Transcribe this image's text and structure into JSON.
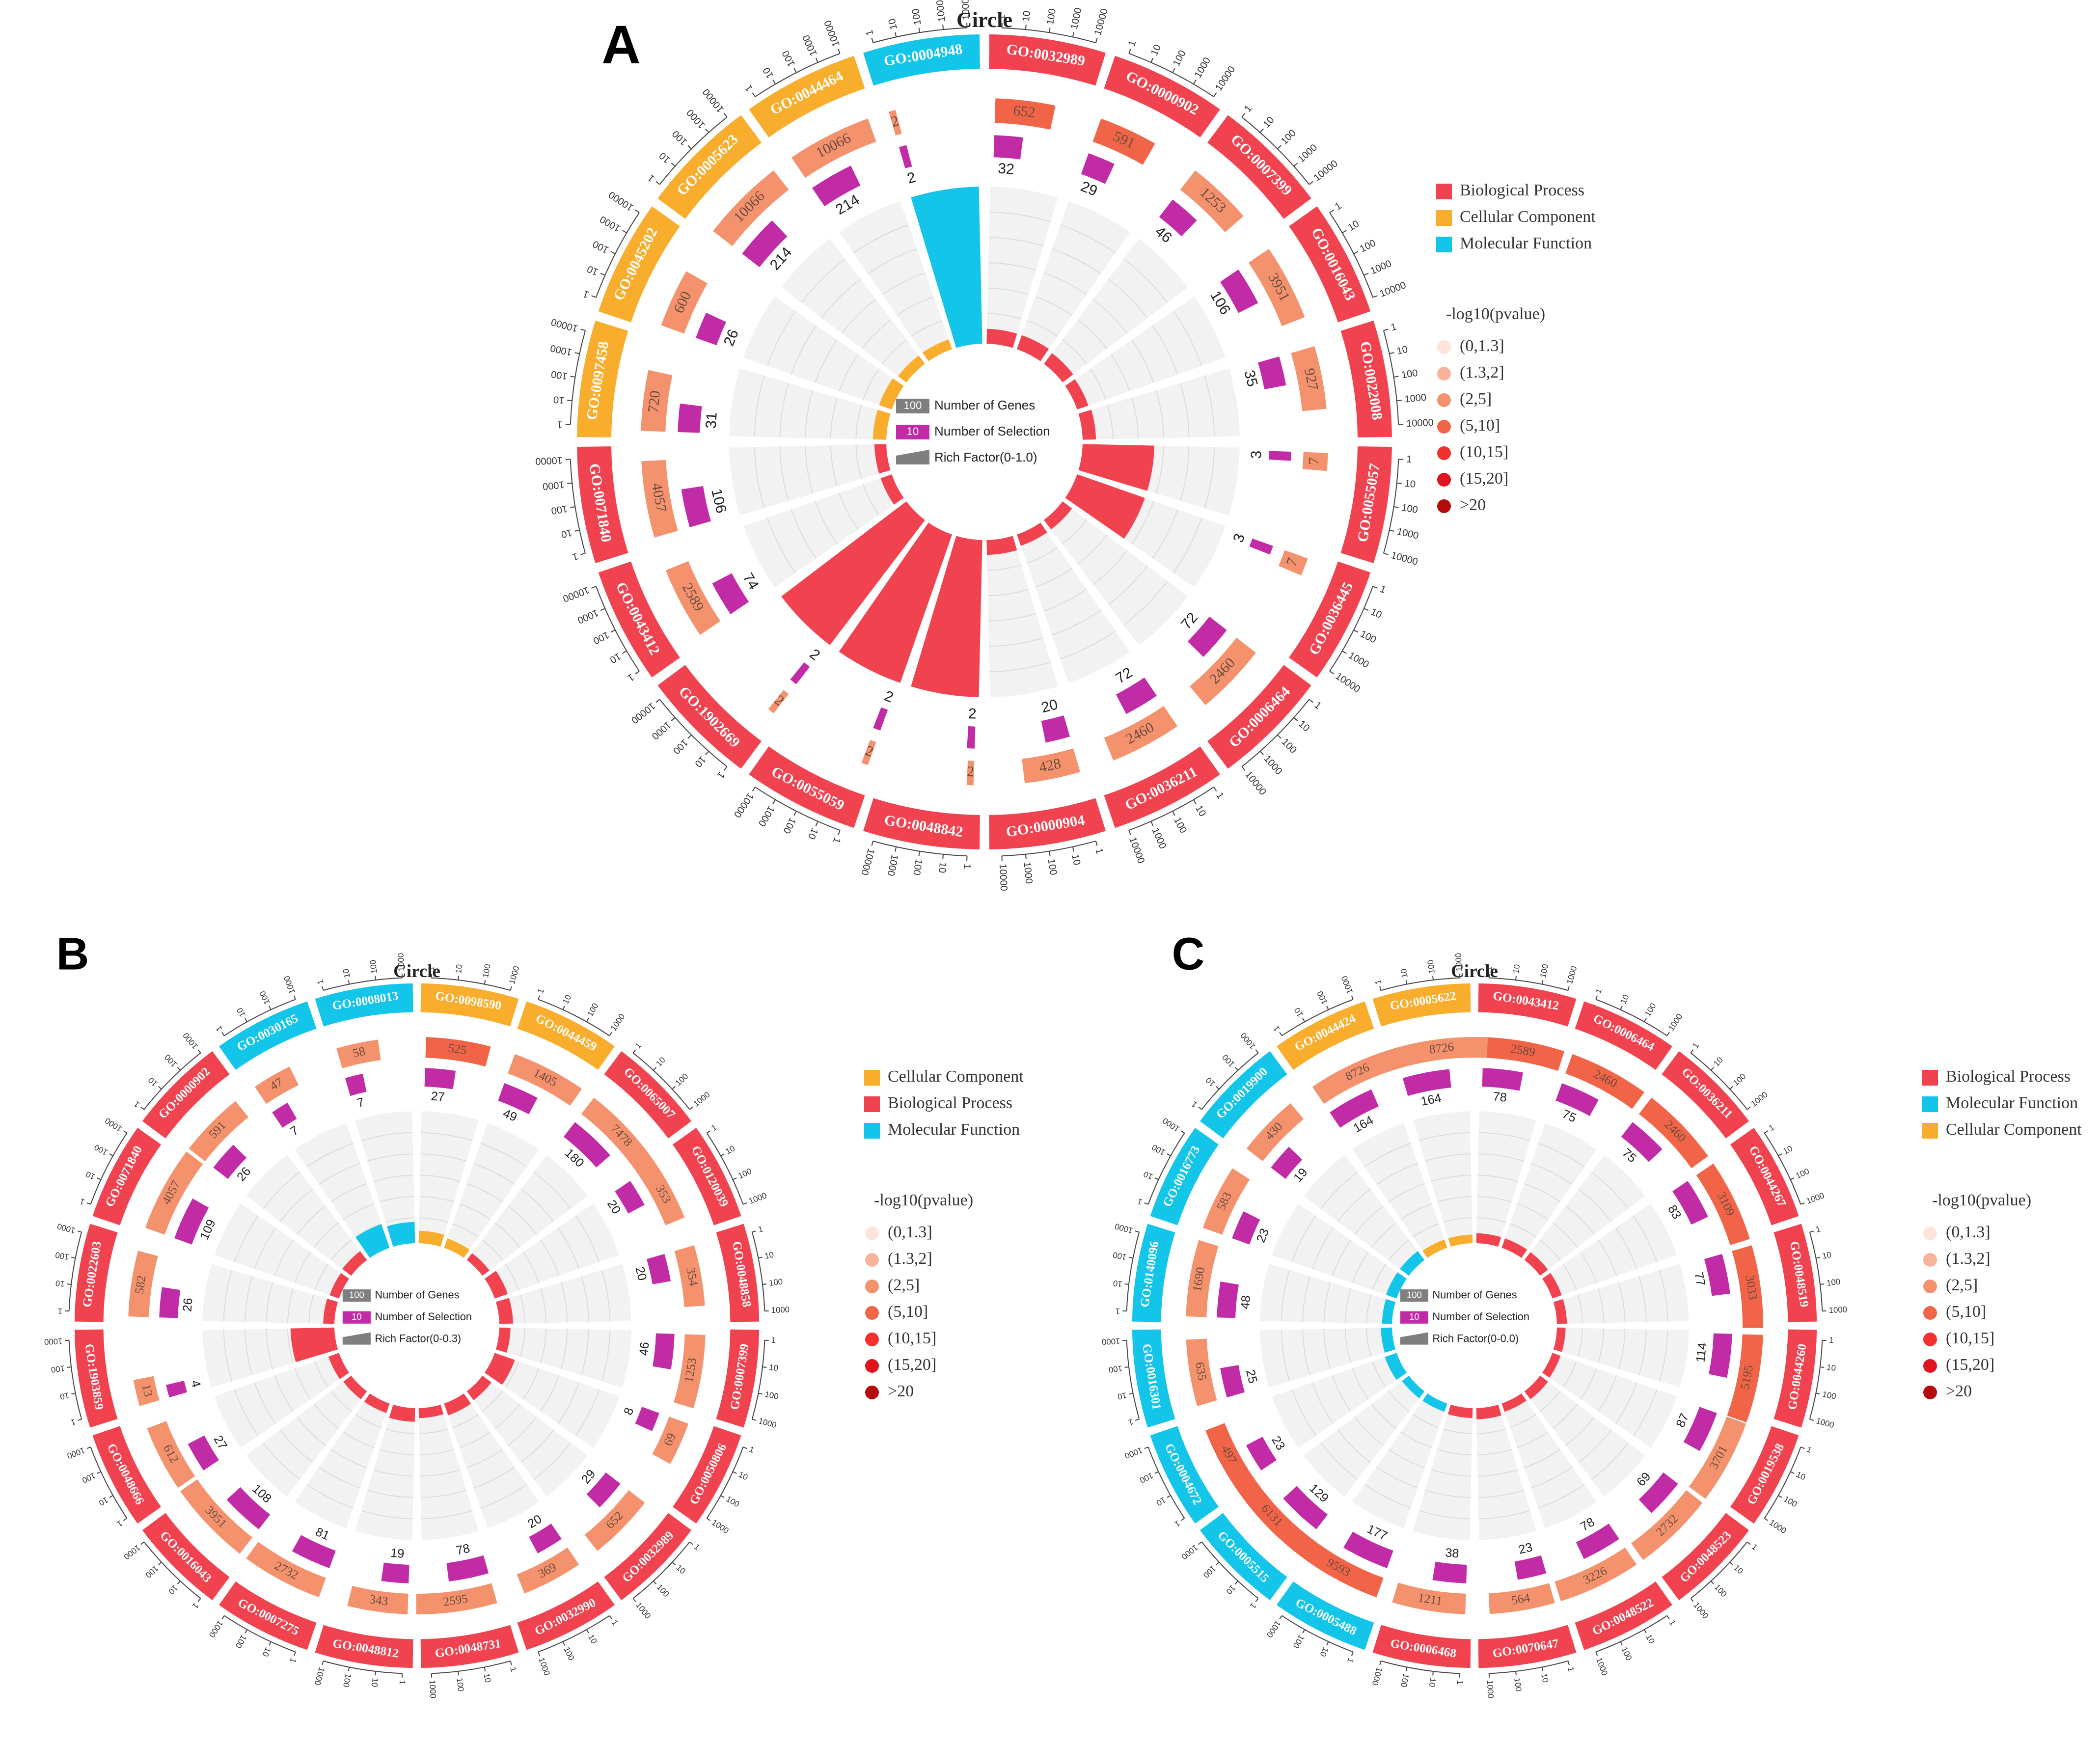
{
  "colors": {
    "Biological Process": "#f0434f",
    "Cellular Component": "#f8ad2c",
    "Molecular Function": "#13c5e8",
    "selection": "#c12ba6",
    "grey": "#7f7f7f",
    "pv": {
      "(0,1.3]": "#fde4dc",
      "(1.3,2]": "#f9b39b",
      "(2,5]": "#f4926d",
      "(5,10]": "#f26447",
      "(10,15]": "#f2312c",
      "(15,20]": "#e0141e",
      ">20": "#b30c0c"
    }
  },
  "pvalue_title": "-log10(pvalue)",
  "pvalue_bins": [
    "(0,1.3]",
    "(1.3,2]",
    "(2,5]",
    "(5,10]",
    "(10,15]",
    "(15,20]",
    ">20"
  ],
  "center_labels": {
    "genes_chip": "100",
    "selection_chip": "10",
    "genes": "Number of Genes",
    "selection": "Number of Selection"
  },
  "chart_data": [
    {
      "type": "circos-enrichment",
      "panel": "A",
      "title": "Circle",
      "legend": [
        "Biological Process",
        "Cellular Component",
        "Molecular Function"
      ],
      "rich_factor_label": "Rich Factor(0-1.0)",
      "axis_max": 10000,
      "ticks": [
        "1",
        "10",
        "100",
        "1000",
        "10000"
      ],
      "terms": [
        {
          "id": "GO:0032989",
          "cat": "Biological Process",
          "genes": 652,
          "sel": 32,
          "pv": "(5,10]",
          "rich": 0.05
        },
        {
          "id": "GO:0000902",
          "cat": "Biological Process",
          "genes": 591,
          "sel": 29,
          "pv": "(5,10]",
          "rich": 0.05
        },
        {
          "id": "GO:0007399",
          "cat": "Biological Process",
          "genes": 1253,
          "sel": 46,
          "pv": "(2,5]",
          "rich": 0.04
        },
        {
          "id": "GO:0016043",
          "cat": "Biological Process",
          "genes": 3951,
          "sel": 106,
          "pv": "(2,5]",
          "rich": 0.03
        },
        {
          "id": "GO:0022008",
          "cat": "Biological Process",
          "genes": 927,
          "sel": 35,
          "pv": "(2,5]",
          "rich": 0.04
        },
        {
          "id": "GO:0055057",
          "cat": "Biological Process",
          "genes": 7,
          "sel": 3,
          "pv": "(2,5]",
          "rich": 0.43
        },
        {
          "id": "GO:0036445",
          "cat": "Biological Process",
          "genes": 7,
          "sel": 3,
          "pv": "(2,5]",
          "rich": 0.43
        },
        {
          "id": "GO:0006464",
          "cat": "Biological Process",
          "genes": 2460,
          "sel": 72,
          "pv": "(2,5]",
          "rich": 0.03
        },
        {
          "id": "GO:0036211",
          "cat": "Biological Process",
          "genes": 2460,
          "sel": 72,
          "pv": "(2,5]",
          "rich": 0.03
        },
        {
          "id": "GO:0000904",
          "cat": "Biological Process",
          "genes": 428,
          "sel": 20,
          "pv": "(2,5]",
          "rich": 0.05
        },
        {
          "id": "GO:0048842",
          "cat": "Biological Process",
          "genes": 2,
          "sel": 2,
          "pv": "(2,5]",
          "rich": 1.0
        },
        {
          "id": "GO:0055059",
          "cat": "Biological Process",
          "genes": 2,
          "sel": 2,
          "pv": "(2,5]",
          "rich": 1.0
        },
        {
          "id": "GO:1902669",
          "cat": "Biological Process",
          "genes": 2,
          "sel": 2,
          "pv": "(2,5]",
          "rich": 1.0
        },
        {
          "id": "GO:0043412",
          "cat": "Biological Process",
          "genes": 2589,
          "sel": 74,
          "pv": "(2,5]",
          "rich": 0.03
        },
        {
          "id": "GO:0071840",
          "cat": "Biological Process",
          "genes": 4057,
          "sel": 106,
          "pv": "(2,5]",
          "rich": 0.03
        },
        {
          "id": "GO:0097458",
          "cat": "Cellular Component",
          "genes": 720,
          "sel": 31,
          "pv": "(2,5]",
          "rich": 0.04
        },
        {
          "id": "GO:0045202",
          "cat": "Cellular Component",
          "genes": 600,
          "sel": 26,
          "pv": "(2,5]",
          "rich": 0.04
        },
        {
          "id": "GO:0005623",
          "cat": "Cellular Component",
          "genes": 10066,
          "sel": 214,
          "pv": "(2,5]",
          "rich": 0.02
        },
        {
          "id": "GO:0044464",
          "cat": "Cellular Component",
          "genes": 10066,
          "sel": 214,
          "pv": "(2,5]",
          "rich": 0.02
        },
        {
          "id": "GO:0004948",
          "cat": "Molecular Function",
          "genes": 2,
          "sel": 2,
          "pv": "(2,5]",
          "rich": 1.0
        }
      ]
    },
    {
      "type": "circos-enrichment",
      "panel": "B",
      "title": "Circle",
      "legend": [
        "Cellular Component",
        "Biological Process",
        "Molecular Function"
      ],
      "rich_factor_label": "Rich Factor(0-0.3)",
      "axis_max": 1000,
      "ticks": [
        "1",
        "10",
        "100",
        "1000"
      ],
      "terms": [
        {
          "id": "GO:0098590",
          "cat": "Cellular Component",
          "genes": 525,
          "sel": 27,
          "pv": "(5,10]",
          "rich": 0.05
        },
        {
          "id": "GO:0044459",
          "cat": "Cellular Component",
          "genes": 1405,
          "sel": 49,
          "pv": "(2,5]",
          "rich": 0.03
        },
        {
          "id": "GO:0065007",
          "cat": "Biological Process",
          "genes": 7478,
          "sel": 180,
          "pv": "(2,5]",
          "rich": 0.02
        },
        {
          "id": "GO:0120039",
          "cat": "Biological Process",
          "genes": 353,
          "sel": 20,
          "pv": "(2,5]",
          "rich": 0.06
        },
        {
          "id": "GO:0048858",
          "cat": "Biological Process",
          "genes": 354,
          "sel": 20,
          "pv": "(2,5]",
          "rich": 0.06
        },
        {
          "id": "GO:0007399",
          "cat": "Biological Process",
          "genes": 1253,
          "sel": 46,
          "pv": "(2,5]",
          "rich": 0.04
        },
        {
          "id": "GO:0050806",
          "cat": "Biological Process",
          "genes": 69,
          "sel": 8,
          "pv": "(2,5]",
          "rich": 0.12
        },
        {
          "id": "GO:0032989",
          "cat": "Biological Process",
          "genes": 652,
          "sel": 29,
          "pv": "(2,5]",
          "rich": 0.04
        },
        {
          "id": "GO:0032990",
          "cat": "Biological Process",
          "genes": 369,
          "sel": 20,
          "pv": "(2,5]",
          "rich": 0.05
        },
        {
          "id": "GO:0048731",
          "cat": "Biological Process",
          "genes": 2595,
          "sel": 78,
          "pv": "(2,5]",
          "rich": 0.03
        },
        {
          "id": "GO:0048812",
          "cat": "Biological Process",
          "genes": 343,
          "sel": 19,
          "pv": "(2,5]",
          "rich": 0.06
        },
        {
          "id": "GO:0007275",
          "cat": "Biological Process",
          "genes": 2732,
          "sel": 81,
          "pv": "(2,5]",
          "rich": 0.03
        },
        {
          "id": "GO:0016043",
          "cat": "Biological Process",
          "genes": 3951,
          "sel": 108,
          "pv": "(2,5]",
          "rich": 0.03
        },
        {
          "id": "GO:0048666",
          "cat": "Biological Process",
          "genes": 612,
          "sel": 27,
          "pv": "(2,5]",
          "rich": 0.04
        },
        {
          "id": "GO:1903859",
          "cat": "Biological Process",
          "genes": 13,
          "sel": 4,
          "pv": "(2,5]",
          "rich": 0.3
        },
        {
          "id": "GO:0022603",
          "cat": "Biological Process",
          "genes": 582,
          "sel": 26,
          "pv": "(2,5]",
          "rich": 0.04
        },
        {
          "id": "GO:0071840",
          "cat": "Biological Process",
          "genes": 4057,
          "sel": 109,
          "pv": "(2,5]",
          "rich": 0.03
        },
        {
          "id": "GO:0000902",
          "cat": "Biological Process",
          "genes": 591,
          "sel": 26,
          "pv": "(2,5]",
          "rich": 0.04
        },
        {
          "id": "GO:0030165",
          "cat": "Molecular Function",
          "genes": 47,
          "sel": 7,
          "pv": "(2,5]",
          "rich": 0.15
        },
        {
          "id": "GO:0008013",
          "cat": "Molecular Function",
          "genes": 58,
          "sel": 7,
          "pv": "(2,5]",
          "rich": 0.12
        }
      ]
    },
    {
      "type": "circos-enrichment",
      "panel": "C",
      "title": "Circle",
      "legend": [
        "Biological Process",
        "Molecular Function",
        "Cellular Component"
      ],
      "rich_factor_label": "Rich Factor(0-0.0)",
      "axis_max": 1000,
      "ticks": [
        "1",
        "10",
        "100",
        "1000"
      ],
      "terms": [
        {
          "id": "GO:0043412",
          "cat": "Biological Process",
          "genes": 2589,
          "sel": 78,
          "pv": "(5,10]",
          "rich": 0.03
        },
        {
          "id": "GO:0006464",
          "cat": "Biological Process",
          "genes": 2460,
          "sel": 75,
          "pv": "(5,10]",
          "rich": 0.03
        },
        {
          "id": "GO:0036211",
          "cat": "Biological Process",
          "genes": 2460,
          "sel": 75,
          "pv": "(5,10]",
          "rich": 0.03
        },
        {
          "id": "GO:0044267",
          "cat": "Biological Process",
          "genes": 3109,
          "sel": 83,
          "pv": "(5,10]",
          "rich": 0.03
        },
        {
          "id": "GO:0048519",
          "cat": "Biological Process",
          "genes": 3033,
          "sel": 77,
          "pv": "(5,10]",
          "rich": 0.03
        },
        {
          "id": "GO:0044260",
          "cat": "Biological Process",
          "genes": 5195,
          "sel": 114,
          "pv": "(5,10]",
          "rich": 0.02
        },
        {
          "id": "GO:0019538",
          "cat": "Biological Process",
          "genes": 3701,
          "sel": 87,
          "pv": "(2,5]",
          "rich": 0.02
        },
        {
          "id": "GO:0048523",
          "cat": "Biological Process",
          "genes": 2732,
          "sel": 69,
          "pv": "(2,5]",
          "rich": 0.03
        },
        {
          "id": "GO:0048522",
          "cat": "Biological Process",
          "genes": 3226,
          "sel": 78,
          "pv": "(2,5]",
          "rich": 0.02
        },
        {
          "id": "GO:0070647",
          "cat": "Biological Process",
          "genes": 564,
          "sel": 23,
          "pv": "(2,5]",
          "rich": 0.04
        },
        {
          "id": "GO:0006468",
          "cat": "Biological Process",
          "genes": 1211,
          "sel": 38,
          "pv": "(2,5]",
          "rich": 0.03
        },
        {
          "id": "GO:0005488",
          "cat": "Molecular Function",
          "genes": 9593,
          "sel": 177,
          "pv": "(5,10]",
          "rich": 0.02
        },
        {
          "id": "GO:0005515",
          "cat": "Molecular Function",
          "genes": 6131,
          "sel": 129,
          "pv": "(5,10]",
          "rich": 0.02
        },
        {
          "id": "GO:0004672",
          "cat": "Molecular Function",
          "genes": 497,
          "sel": 23,
          "pv": "(5,10]",
          "rich": 0.05
        },
        {
          "id": "GO:0016301",
          "cat": "Molecular Function",
          "genes": 635,
          "sel": 25,
          "pv": "(2,5]",
          "rich": 0.04
        },
        {
          "id": "GO:0140096",
          "cat": "Molecular Function",
          "genes": 1690,
          "sel": 48,
          "pv": "(2,5]",
          "rich": 0.03
        },
        {
          "id": "GO:0016773",
          "cat": "Molecular Function",
          "genes": 583,
          "sel": 23,
          "pv": "(2,5]",
          "rich": 0.04
        },
        {
          "id": "GO:0019900",
          "cat": "Molecular Function",
          "genes": 430,
          "sel": 19,
          "pv": "(2,5]",
          "rich": 0.04
        },
        {
          "id": "GO:0044424",
          "cat": "Cellular Component",
          "genes": 8726,
          "sel": 164,
          "pv": "(2,5]",
          "rich": 0.02
        },
        {
          "id": "GO:0005622",
          "cat": "Cellular Component",
          "genes": 8726,
          "sel": 164,
          "pv": "(2,5]",
          "rich": 0.02
        }
      ]
    }
  ]
}
